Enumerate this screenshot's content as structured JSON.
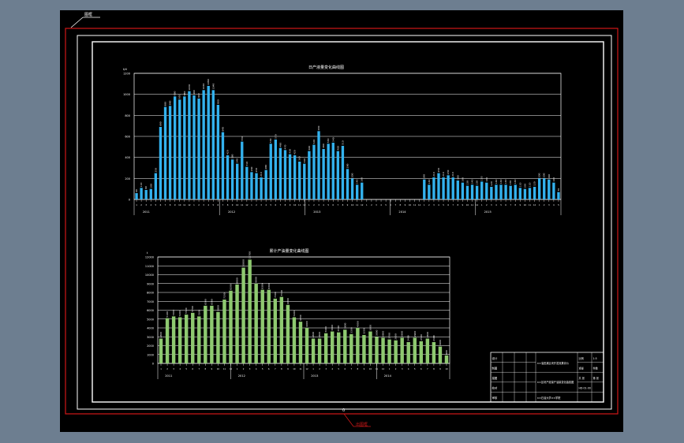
{
  "layout_tag": "图框",
  "layout_tag2": "出图框",
  "chart1": {
    "title": "日产液量变化曲线图",
    "y_ticks": [
      "0",
      "200",
      "400",
      "600",
      "800",
      "1000",
      "1200"
    ],
    "y_unit": "t/d",
    "years": [
      "2011",
      "2012",
      "2013",
      "2014",
      "2015"
    ],
    "values": [
      60,
      110,
      90,
      100,
      250,
      690,
      880,
      890,
      980,
      950,
      980,
      1030,
      990,
      960,
      1040,
      1080,
      1040,
      900,
      640,
      420,
      380,
      340,
      550,
      310,
      260,
      250,
      210,
      280,
      530,
      570,
      490,
      470,
      430,
      420,
      360,
      340,
      460,
      520,
      650,
      480,
      530,
      540,
      460,
      510,
      290,
      200,
      140,
      160,
      0,
      0,
      0,
      0,
      0,
      0,
      0,
      0,
      0,
      0,
      0,
      0,
      190,
      140,
      210,
      250,
      210,
      230,
      210,
      180,
      160,
      130,
      140,
      130,
      170,
      160,
      120,
      140,
      140,
      140,
      130,
      140,
      110,
      100,
      110,
      120,
      200,
      200,
      190,
      160,
      70
    ]
  },
  "chart2": {
    "title": "累计产油量变化曲线图",
    "y_ticks": [
      "0",
      "1000",
      "2000",
      "3000",
      "4000",
      "5000",
      "6000",
      "7000",
      "8000",
      "9000",
      "10000",
      "11000",
      "12000"
    ],
    "y_unit": "t",
    "years": [
      "2011",
      "2012",
      "2013",
      "2014"
    ],
    "values": [
      2800,
      5100,
      5300,
      5200,
      5500,
      5700,
      5300,
      6500,
      6500,
      5800,
      7200,
      8200,
      8900,
      10800,
      11700,
      9000,
      8300,
      8300,
      7300,
      7500,
      6600,
      5200,
      4700,
      4000,
      2800,
      2800,
      3400,
      3600,
      3500,
      3800,
      3300,
      4000,
      3200,
      3600,
      3000,
      2900,
      2700,
      2600,
      2900,
      2400,
      2900,
      2500,
      2800,
      2400,
      1900,
      900
    ]
  },
  "title_block": {
    "rows": [
      [
        "设计",
        "",
        "",
        "",
        "",
        "比例",
        "1:5"
      ],
      [
        "制图",
        "",
        "",
        "",
        "",
        "重量",
        "件数"
      ],
      [
        "描图",
        "",
        "",
        "",
        "",
        "共 张",
        "第 张"
      ],
      [
        "校对",
        "",
        "",
        "",
        "",
        "",
        ""
      ],
      [
        "审核",
        "",
        "",
        "",
        "",
        "",
        ""
      ]
    ],
    "unit": "××油田某区块开发效果评价",
    "drawing_name": "××区块产液量产油量变化曲线图",
    "drawing_no": "HD-01-00",
    "date": "",
    "company": "××石油大学××学院"
  },
  "footer_mark": "0",
  "colors": {
    "paper": "#000000",
    "border": "#d01818",
    "frame": "#ffffff",
    "bar1": "#33b2ee",
    "bar2": "#8ec970",
    "grid": "#ffffff"
  }
}
